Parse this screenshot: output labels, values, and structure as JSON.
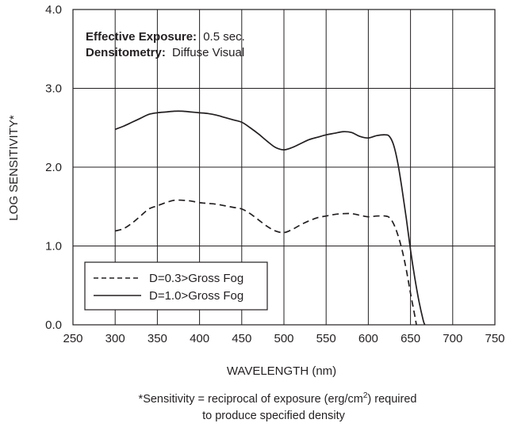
{
  "chart_data": {
    "type": "line",
    "xlabel": "WAVELENGTH (nm)",
    "ylabel": "LOG SENSITIVITY*",
    "xlim": [
      250,
      750
    ],
    "ylim": [
      0.0,
      4.0
    ],
    "x_ticks": [
      "250",
      "300",
      "350",
      "400",
      "450",
      "500",
      "550",
      "600",
      "650",
      "700",
      "750"
    ],
    "y_ticks": [
      "0.0",
      "1.0",
      "2.0",
      "3.0",
      "4.0"
    ],
    "grid": true,
    "legend_position": "bottom-left",
    "info": {
      "line1_label": "Effective Exposure:",
      "line1_value": "0.5 sec.",
      "line2_label": "Densitometry:",
      "line2_value": "Diffuse Visual"
    },
    "footnote": {
      "line1_a": "*Sensitivity = reciprocal of exposure (erg/cm",
      "line1_sup": "2",
      "line1_b": ") required",
      "line2": "to produce specified density"
    },
    "series": [
      {
        "name": "D=0.3>Gross Fog",
        "style": "dashed",
        "color": "#231f20",
        "x": [
          300,
          310,
          320,
          330,
          340,
          350,
          360,
          370,
          380,
          390,
          400,
          410,
          420,
          430,
          440,
          450,
          460,
          470,
          480,
          490,
          500,
          510,
          520,
          530,
          540,
          550,
          560,
          570,
          580,
          590,
          600,
          610,
          620,
          625,
          630,
          635,
          640,
          645,
          650,
          655,
          657
        ],
        "y": [
          1.19,
          1.22,
          1.29,
          1.38,
          1.47,
          1.51,
          1.55,
          1.58,
          1.58,
          1.57,
          1.55,
          1.54,
          1.53,
          1.51,
          1.49,
          1.47,
          1.41,
          1.33,
          1.25,
          1.19,
          1.17,
          1.21,
          1.27,
          1.32,
          1.36,
          1.38,
          1.4,
          1.41,
          1.41,
          1.39,
          1.37,
          1.38,
          1.38,
          1.36,
          1.28,
          1.14,
          0.95,
          0.7,
          0.4,
          0.12,
          0.0
        ]
      },
      {
        "name": "D=1.0>Gross Fog",
        "style": "solid",
        "color": "#231f20",
        "x": [
          300,
          310,
          320,
          330,
          340,
          350,
          360,
          370,
          380,
          390,
          400,
          410,
          420,
          430,
          440,
          450,
          460,
          470,
          480,
          490,
          500,
          510,
          520,
          530,
          540,
          550,
          560,
          570,
          580,
          590,
          600,
          610,
          620,
          625,
          630,
          635,
          640,
          645,
          650,
          655,
          660,
          665,
          667
        ],
        "y": [
          2.48,
          2.52,
          2.57,
          2.62,
          2.67,
          2.69,
          2.7,
          2.71,
          2.71,
          2.7,
          2.69,
          2.68,
          2.66,
          2.63,
          2.6,
          2.57,
          2.5,
          2.42,
          2.33,
          2.25,
          2.22,
          2.25,
          2.3,
          2.35,
          2.38,
          2.41,
          2.43,
          2.45,
          2.44,
          2.39,
          2.37,
          2.4,
          2.41,
          2.39,
          2.28,
          2.05,
          1.72,
          1.35,
          0.95,
          0.6,
          0.3,
          0.06,
          0.0
        ]
      }
    ]
  }
}
